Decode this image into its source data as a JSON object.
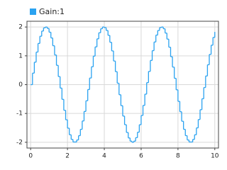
{
  "chart_data": {
    "type": "stairs",
    "legend": "top-left",
    "series": [
      {
        "name": "Gain:1",
        "color": "#2aa2f0",
        "values": [
          0,
          0.4,
          0.78,
          1.13,
          1.43,
          1.68,
          1.86,
          1.97,
          2.0,
          1.95,
          1.82,
          1.62,
          1.35,
          1.03,
          0.67,
          0.28,
          -0.12,
          -0.51,
          -0.89,
          -1.22,
          -1.51,
          -1.74,
          -1.9,
          -1.99,
          -1.99,
          -1.92,
          -1.77,
          -1.55,
          -1.26,
          -0.93,
          -0.56,
          -0.17,
          0.23,
          0.62,
          0.99,
          1.31,
          1.59,
          1.8,
          1.94,
          2.0,
          1.98,
          1.88,
          1.71,
          1.47,
          1.17,
          0.82,
          0.45,
          0.05,
          -0.35,
          -0.73,
          -1.09,
          -1.39,
          -1.66,
          -1.85,
          -1.96,
          -2.0,
          -1.96,
          -1.84,
          -1.65,
          -1.39,
          -1.07,
          -0.72,
          -0.33,
          0.07,
          0.46,
          0.84,
          1.18,
          1.48,
          1.72,
          1.88,
          1.98,
          2.0,
          1.94,
          1.79,
          1.58,
          1.3,
          0.97,
          0.61,
          0.22,
          -0.18,
          -0.58,
          -0.94,
          -1.27,
          -1.55,
          -1.77,
          -1.92,
          -1.99,
          -1.99,
          -1.9,
          -1.74,
          -1.5,
          -1.21,
          -0.87,
          -0.49,
          -0.1,
          0.3,
          0.69,
          1.05,
          1.37,
          1.64,
          1.83
        ]
      }
    ],
    "x": [
      0,
      0.1,
      0.2,
      0.3,
      0.4,
      0.5,
      0.6,
      0.7,
      0.8,
      0.9,
      1,
      1.1,
      1.2,
      1.3,
      1.4,
      1.5,
      1.6,
      1.7,
      1.8,
      1.9,
      2,
      2.1,
      2.2,
      2.3,
      2.4,
      2.5,
      2.6,
      2.7,
      2.8,
      2.9,
      3,
      3.1,
      3.2,
      3.3,
      3.4,
      3.5,
      3.6,
      3.7,
      3.8,
      3.9,
      4,
      4.1,
      4.2,
      4.3,
      4.4,
      4.5,
      4.6,
      4.7,
      4.8,
      4.9,
      5,
      5.1,
      5.2,
      5.3,
      5.4,
      5.5,
      5.6,
      5.7,
      5.8,
      5.9,
      6,
      6.1,
      6.2,
      6.3,
      6.4,
      6.5,
      6.6,
      6.7,
      6.8,
      6.9,
      7,
      7.1,
      7.2,
      7.3,
      7.4,
      7.5,
      7.6,
      7.7,
      7.8,
      7.9,
      8,
      8.1,
      8.2,
      8.3,
      8.4,
      8.5,
      8.6,
      8.7,
      8.8,
      8.9,
      9,
      9.1,
      9.2,
      9.3,
      9.4,
      9.5,
      9.6,
      9.7,
      9.8,
      9.9,
      10
    ],
    "xlim": [
      -0.2,
      10.2
    ],
    "xticks": [
      0,
      2,
      4,
      6,
      8,
      10
    ],
    "ylim": [
      -2.2,
      2.2
    ],
    "yticks": [
      -2,
      -1,
      0,
      1,
      2
    ],
    "grid": true
  }
}
